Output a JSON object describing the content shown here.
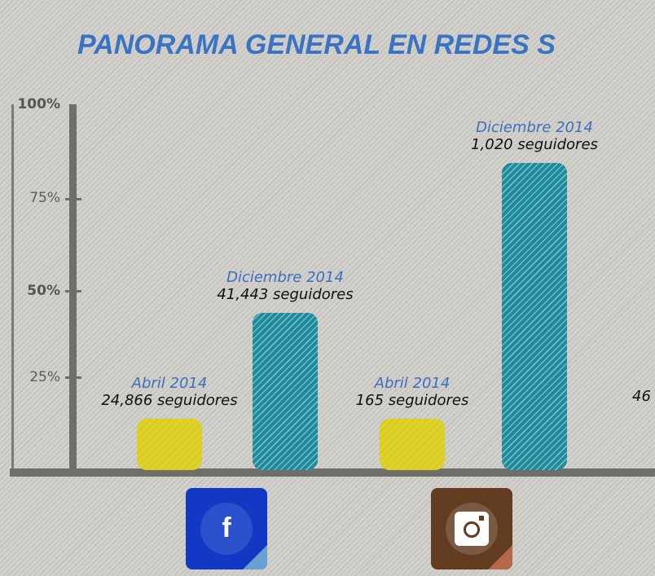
{
  "title": "PANORAMA GENERAL EN REDES S",
  "chart_data": {
    "type": "bar",
    "title": "PANORAMA GENERAL EN REDES S",
    "ylim": [
      0,
      100
    ],
    "y_ticks": [
      "100%",
      "75%",
      "50%",
      "25%"
    ],
    "grid": false,
    "colors": {
      "Abril 2014": "#dccf27",
      "Diciembre 2014": "#188597"
    },
    "categories": [
      "facebook",
      "instagram"
    ],
    "bars": [
      {
        "network": "facebook",
        "period": "Abril 2014",
        "label": "24,866 seguidores",
        "value": 14
      },
      {
        "network": "facebook",
        "period": "Diciembre 2014",
        "label": "41,443 seguidores",
        "value": 43
      },
      {
        "network": "instagram",
        "period": "Abril 2014",
        "label": "165 seguidores",
        "value": 14
      },
      {
        "network": "instagram",
        "period": "Diciembre 2014",
        "label": "1,020 seguidores",
        "value": 84
      }
    ],
    "partial_label": "46"
  },
  "icons": [
    "facebook-icon",
    "instagram-icon"
  ]
}
